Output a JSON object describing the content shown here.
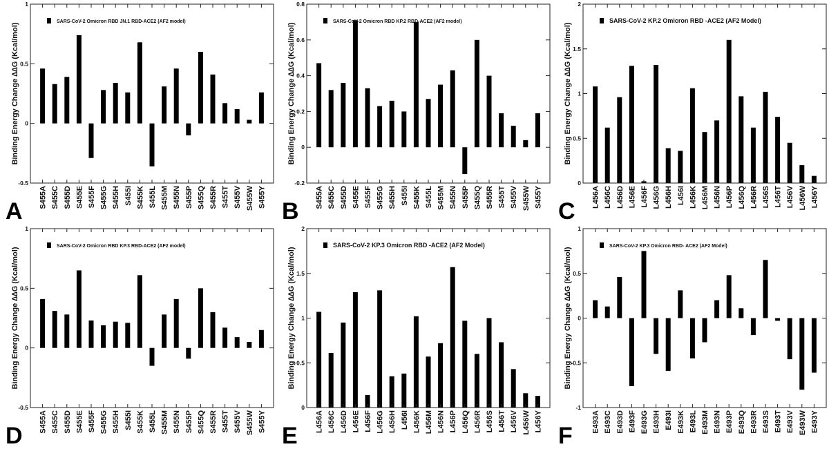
{
  "colors": {
    "bar": "#000000",
    "frame": "#222222",
    "background": "#ffffff"
  },
  "chart_data": [
    {
      "panel": "A",
      "type": "bar",
      "title": "",
      "legend": "SARS-CoV-2 Omicron RBD JN.1 RBD-ACE2 (AF2 model)",
      "ylabel": "Binding  Energy Change ∆∆G (Kcal/mol)",
      "xlabel": "",
      "ylim": [
        -0.5,
        1
      ],
      "yticks": [
        -0.5,
        0,
        0.5,
        1
      ],
      "ytick_labels": [
        "-0.5",
        "0",
        "0.5",
        "1"
      ],
      "categories": [
        "S455A",
        "S455C",
        "S455D",
        "S455E",
        "S455F",
        "S455G",
        "S455H",
        "S455I",
        "S455K",
        "S455L",
        "S455M",
        "S455N",
        "S455P",
        "S455Q",
        "S455R",
        "S455T",
        "S455V",
        "S455W",
        "S455Y"
      ],
      "values": [
        0.46,
        0.33,
        0.39,
        0.74,
        -0.29,
        0.28,
        0.34,
        0.26,
        0.68,
        -0.36,
        0.31,
        0.46,
        -0.1,
        0.6,
        0.41,
        0.17,
        0.12,
        0.03,
        0.26
      ],
      "legend_position": "top-left",
      "grid": false
    },
    {
      "panel": "B",
      "type": "bar",
      "title": "",
      "legend": "SARS-CoV-2 Omicron RBD KP.2 RBD-ACE2 (AF2 model)",
      "ylabel": "Binding  Energy Change ∆∆G (Kcal/mol)",
      "xlabel": "",
      "ylim": [
        -0.2,
        0.8
      ],
      "yticks": [
        -0.2,
        0,
        0.2,
        0.4,
        0.6,
        0.8
      ],
      "ytick_labels": [
        "-0.2",
        "0",
        "0.2",
        "0.4",
        "0.6",
        "0.8"
      ],
      "categories": [
        "S455A",
        "S455C",
        "S455D",
        "S455E",
        "S455F",
        "S455G",
        "S455H",
        "S455I",
        "S455K",
        "S455L",
        "S455M",
        "S455N",
        "S455P",
        "S455Q",
        "S455R",
        "S455T",
        "S455V",
        "S455W",
        "S455Y"
      ],
      "values": [
        0.47,
        0.32,
        0.36,
        0.71,
        0.33,
        0.23,
        0.26,
        0.2,
        0.7,
        0.27,
        0.35,
        0.43,
        -0.15,
        0.6,
        0.4,
        0.19,
        0.12,
        0.04,
        0.19
      ],
      "legend_position": "top-left",
      "grid": false
    },
    {
      "panel": "C",
      "type": "bar",
      "title": "",
      "legend": "SARS-CoV-2 KP.2 Omicron RBD -ACE2  (AF2  Model)",
      "ylabel": "Binding  Energy Change ∆∆G (Kcal/mol)",
      "xlabel": "",
      "ylim": [
        0,
        2
      ],
      "yticks": [
        0,
        0.5,
        1,
        1.5,
        2
      ],
      "ytick_labels": [
        "0",
        "0.5",
        "1",
        "1.5",
        "2"
      ],
      "categories": [
        "L456A",
        "L456C",
        "L456D",
        "L456E",
        "L456F",
        "L456G",
        "L456H",
        "L456I",
        "L456K",
        "L456M",
        "L456N",
        "L456P",
        "L456Q",
        "L456R",
        "L456S",
        "L456T",
        "L456V",
        "L456W",
        "L456Y"
      ],
      "values": [
        1.08,
        0.62,
        0.96,
        1.31,
        0.02,
        1.32,
        0.39,
        0.36,
        1.06,
        0.57,
        0.7,
        1.6,
        0.97,
        0.62,
        1.02,
        0.74,
        0.45,
        0.2,
        0.08
      ],
      "legend_position": "top-left",
      "grid": false
    },
    {
      "panel": "D",
      "type": "bar",
      "title": "",
      "legend": "SARS-CoV-2 Omicron RBD KP.3 RBD-ACE2 (AF2 model)",
      "ylabel": "Binding  Energy Change ∆∆G (Kcal/mol)",
      "xlabel": "",
      "ylim": [
        -0.5,
        1
      ],
      "yticks": [
        -0.5,
        0,
        0.5,
        1
      ],
      "ytick_labels": [
        "-0.5",
        "0",
        "0.5",
        "1"
      ],
      "categories": [
        "S455A",
        "S455C",
        "S455D",
        "S455E",
        "S455F",
        "S455G",
        "S455H",
        "S455I",
        "S455K",
        "S455L",
        "S455M",
        "S455N",
        "S455P",
        "S455Q",
        "S455R",
        "S455T",
        "S455V",
        "S455W",
        "S455Y"
      ],
      "values": [
        0.41,
        0.31,
        0.28,
        0.65,
        0.23,
        0.19,
        0.22,
        0.21,
        0.61,
        -0.15,
        0.28,
        0.41,
        -0.09,
        0.5,
        0.3,
        0.17,
        0.09,
        0.05,
        0.15
      ],
      "legend_position": "top-left",
      "grid": false
    },
    {
      "panel": "E",
      "type": "bar",
      "title": "",
      "legend": "SARS-CoV-2 KP.3 Omicron RBD -ACE2  (AF2  Model)",
      "ylabel": "Binding  Energy Change ∆∆G (Kcal/mol)",
      "xlabel": "",
      "ylim": [
        0,
        2
      ],
      "yticks": [
        0,
        0.5,
        1,
        1.5,
        2
      ],
      "ytick_labels": [
        "0",
        "0.5",
        "1",
        "1.5",
        "2"
      ],
      "categories": [
        "L456A",
        "L456C",
        "L456D",
        "L456E",
        "L456F",
        "L456G",
        "L456H",
        "L456I",
        "L456K",
        "L456M",
        "L456N",
        "L456P",
        "L456Q",
        "L456R",
        "L456S",
        "L456T",
        "L456V",
        "L456W",
        "L456Y"
      ],
      "values": [
        1.07,
        0.61,
        0.95,
        1.29,
        0.14,
        1.31,
        0.35,
        0.38,
        1.02,
        0.57,
        0.72,
        1.57,
        0.97,
        0.6,
        1.0,
        0.73,
        0.43,
        0.16,
        0.13
      ],
      "legend_position": "top-left",
      "grid": false
    },
    {
      "panel": "F",
      "type": "bar",
      "title": "",
      "legend": "SARS-CoV-2  KP.3 Omicron RBD- ACE2 (AF2 Model)",
      "ylabel": "Binding  Energy Change ∆∆G (Kcal/mol)",
      "xlabel": "",
      "ylim": [
        -1,
        1
      ],
      "yticks": [
        -1,
        -0.5,
        0,
        0.5,
        1
      ],
      "ytick_labels": [
        "-1",
        "-0.5",
        "0",
        "0.5",
        "1"
      ],
      "categories": [
        "E493A",
        "E493C",
        "E493D",
        "E493F",
        "E493G",
        "E493H",
        "E493I",
        "E493K",
        "E493L",
        "E493M",
        "E493N",
        "E493P",
        "E493Q",
        "E493R",
        "E493S",
        "E493T",
        "E493V",
        "E493W",
        "E493Y"
      ],
      "values": [
        0.2,
        0.13,
        0.46,
        -0.76,
        0.75,
        -0.4,
        -0.59,
        0.31,
        -0.45,
        -0.27,
        0.2,
        0.48,
        0.11,
        -0.19,
        0.65,
        -0.03,
        -0.46,
        -0.8,
        -0.61
      ],
      "legend_position": "top-left",
      "grid": false
    }
  ]
}
